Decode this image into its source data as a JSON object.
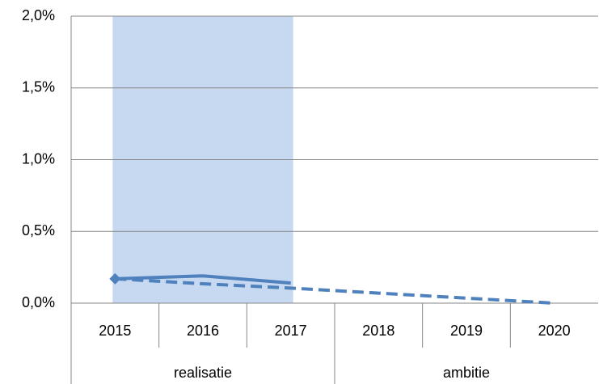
{
  "chart_data": {
    "type": "line",
    "categories": [
      "2015",
      "2016",
      "2017",
      "2018",
      "2019",
      "2020"
    ],
    "group_labels": [
      "realisatie",
      "ambitie"
    ],
    "highlight": {
      "from": "2015",
      "to": "2017",
      "color": "#c6d9f1"
    },
    "series": [
      {
        "color": "#4f81bd",
        "style": "solid",
        "marker": "diamond",
        "values": [
          0.17,
          0.19,
          0.14,
          null,
          null,
          null
        ]
      },
      {
        "color": "#4f81bd",
        "style": "dashed",
        "values": [
          0.17,
          0.135,
          0.105,
          0.07,
          0.035,
          0.0
        ]
      }
    ],
    "ylim": [
      0,
      2
    ],
    "yticks": [
      {
        "value": 0,
        "label": "0,0%"
      },
      {
        "value": 0.5,
        "label": "0,5%"
      },
      {
        "value": 1,
        "label": "1,0%"
      },
      {
        "value": 1.5,
        "label": "1,5%"
      },
      {
        "value": 2,
        "label": "2,0%"
      }
    ],
    "grid": true
  }
}
